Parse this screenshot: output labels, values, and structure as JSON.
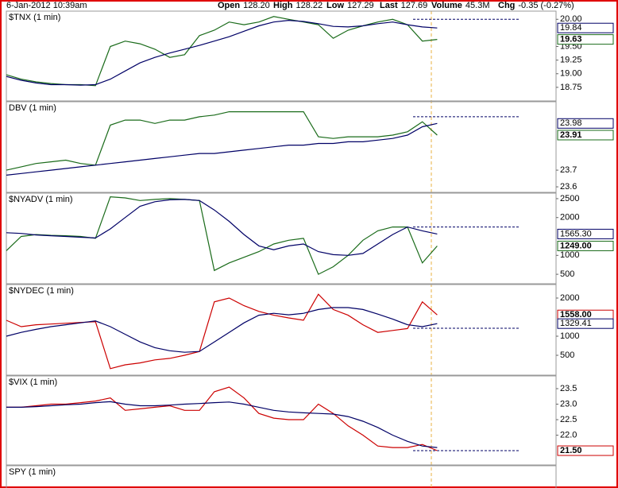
{
  "header": {
    "date": "6-Jan-2012 10:39am",
    "items": [
      {
        "label": "Open",
        "value": "128.20"
      },
      {
        "label": "High",
        "value": "128.22"
      },
      {
        "label": "Low",
        "value": "127.29"
      },
      {
        "label": "Last",
        "value": "127.69"
      },
      {
        "label": "Volume",
        "value": "45.3M"
      },
      {
        "label": "Chg",
        "value": "-0.35 (-0.27%)"
      }
    ]
  },
  "chart_data": [
    {
      "type": "line",
      "title": "$TNX (1 min)",
      "xlim": [
        0,
        37
      ],
      "ylim": [
        18.5,
        20.15
      ],
      "yticks": [
        {
          "value": 20,
          "label": "20.00"
        },
        {
          "value": 19.5,
          "label": "19.50"
        },
        {
          "value": 19.25,
          "label": "19.25"
        },
        {
          "value": 19,
          "label": "19.00"
        },
        {
          "value": 18.75,
          "label": "18.75"
        }
      ],
      "reference": 20.0,
      "series": [
        {
          "color": "#1a6b1a",
          "show_last_label": true,
          "values": [
            18.98,
            18.9,
            18.85,
            18.82,
            18.8,
            18.8,
            18.78,
            19.5,
            19.6,
            19.55,
            19.45,
            19.3,
            19.35,
            19.7,
            19.8,
            19.95,
            19.9,
            19.95,
            20.05,
            20.0,
            19.95,
            19.9,
            19.65,
            19.8,
            19.88,
            19.95,
            20.0,
            19.9,
            19.6,
            19.63
          ]
        },
        {
          "color": "#000066",
          "show_last_label": true,
          "values": [
            18.95,
            18.88,
            18.83,
            18.8,
            18.8,
            18.79,
            18.8,
            18.9,
            19.05,
            19.2,
            19.3,
            19.38,
            19.45,
            19.52,
            19.6,
            19.68,
            19.78,
            19.88,
            19.95,
            19.98,
            19.96,
            19.92,
            19.87,
            19.86,
            19.88,
            19.92,
            19.95,
            19.9,
            19.86,
            19.84
          ]
        }
      ]
    },
    {
      "type": "line",
      "title": "DBV (1 min)",
      "xlim": [
        0,
        37
      ],
      "ylim": [
        23.567,
        24.11
      ],
      "yticks": [
        23.7,
        23.6
      ],
      "reference": 24.02,
      "series": [
        {
          "color": "#1a6b1a",
          "show_last_label": true,
          "values": [
            23.7,
            23.72,
            23.74,
            23.75,
            23.76,
            23.74,
            23.73,
            23.97,
            24.0,
            24.0,
            23.98,
            24.0,
            24.0,
            24.02,
            24.03,
            24.05,
            24.05,
            24.05,
            24.05,
            24.05,
            24.05,
            23.9,
            23.89,
            23.9,
            23.9,
            23.9,
            23.91,
            23.93,
            23.99,
            23.91
          ]
        },
        {
          "color": "#000066",
          "show_last_label": true,
          "values": [
            23.67,
            23.68,
            23.69,
            23.7,
            23.71,
            23.72,
            23.73,
            23.74,
            23.75,
            23.76,
            23.77,
            23.78,
            23.79,
            23.8,
            23.8,
            23.81,
            23.82,
            23.83,
            23.84,
            23.85,
            23.85,
            23.86,
            23.86,
            23.87,
            23.87,
            23.88,
            23.89,
            23.91,
            23.96,
            23.98
          ]
        }
      ]
    },
    {
      "type": "line",
      "title": "$NYADV (1 min)",
      "xlim": [
        0,
        37
      ],
      "ylim": [
        250,
        2646
      ],
      "yticks": [
        2500,
        2000,
        1000,
        500
      ],
      "reference": 1750,
      "series": [
        {
          "color": "#1a6b1a",
          "show_last_label": true,
          "values": [
            1125,
            1500,
            1550,
            1530,
            1520,
            1500,
            1450,
            2550,
            2520,
            2450,
            2480,
            2500,
            2480,
            2450,
            600,
            800,
            950,
            1100,
            1300,
            1400,
            1450,
            500,
            700,
            1000,
            1400,
            1650,
            1750,
            1750,
            800,
            1249
          ],
          "value_labels": [
            null,
            null,
            null,
            null,
            null,
            null,
            null,
            null,
            null,
            null,
            null,
            null,
            null,
            null,
            null,
            null,
            null,
            null,
            null,
            null,
            null,
            null,
            null,
            null,
            null,
            null,
            null,
            null,
            null,
            "1249.00"
          ]
        },
        {
          "color": "#000066",
          "show_last_label": true,
          "values": [
            1600,
            1580,
            1540,
            1520,
            1500,
            1480,
            1460,
            1700,
            2000,
            2300,
            2420,
            2470,
            2480,
            2450,
            2200,
            1900,
            1550,
            1250,
            1150,
            1250,
            1300,
            1100,
            1020,
            1000,
            1050,
            1300,
            1550,
            1750,
            1650,
            1565.3
          ],
          "value_labels": [
            null,
            null,
            null,
            null,
            null,
            null,
            null,
            null,
            null,
            null,
            null,
            null,
            null,
            null,
            null,
            null,
            null,
            null,
            null,
            null,
            null,
            null,
            null,
            null,
            null,
            null,
            null,
            null,
            null,
            "1565.30"
          ]
        }
      ]
    },
    {
      "type": "line",
      "title": "$NYDEC (1 min)",
      "xlim": [
        0,
        37
      ],
      "ylim": [
        -20,
        2354
      ],
      "yticks": [
        2000,
        1000,
        500
      ],
      "reference": 1208,
      "series": [
        {
          "color": "#cc0000",
          "show_last_label": true,
          "values": [
            1417,
            1250,
            1300,
            1320,
            1340,
            1360,
            1380,
            150,
            250,
            300,
            380,
            420,
            500,
            600,
            1900,
            2000,
            1800,
            1650,
            1550,
            1480,
            1420,
            2100,
            1700,
            1550,
            1300,
            1100,
            1150,
            1200,
            1900,
            1558
          ],
          "value_labels": [
            null,
            null,
            null,
            null,
            null,
            null,
            null,
            null,
            null,
            null,
            null,
            null,
            null,
            null,
            null,
            null,
            null,
            null,
            null,
            null,
            null,
            null,
            null,
            null,
            null,
            null,
            null,
            null,
            null,
            "1558.00"
          ]
        },
        {
          "color": "#000066",
          "show_last_label": true,
          "values": [
            1000,
            1100,
            1180,
            1250,
            1300,
            1350,
            1400,
            1250,
            1050,
            850,
            700,
            620,
            580,
            600,
            850,
            1100,
            1350,
            1550,
            1600,
            1560,
            1600,
            1700,
            1750,
            1750,
            1700,
            1580,
            1450,
            1300,
            1250,
            1329.41
          ]
        }
      ]
    },
    {
      "type": "line",
      "title": "$VIX (1 min)",
      "xlim": [
        0,
        37
      ],
      "ylim": [
        21.04,
        23.91
      ],
      "yticks": [
        23.5,
        {
          "value": 23,
          "label": "23.0"
        },
        22.5,
        {
          "value": 22,
          "label": "22.0"
        }
      ],
      "reference": 21.5,
      "series": [
        {
          "color": "#cc0000",
          "show_last_label": true,
          "values": [
            22.9,
            22.9,
            22.95,
            23.0,
            23.0,
            23.05,
            23.1,
            23.2,
            22.8,
            22.85,
            22.9,
            22.95,
            22.8,
            22.8,
            23.4,
            23.55,
            23.2,
            22.7,
            22.55,
            22.5,
            22.5,
            23.0,
            22.7,
            22.3,
            22.0,
            21.65,
            21.6,
            21.6,
            21.7,
            21.5
          ],
          "value_labels": [
            null,
            null,
            null,
            null,
            null,
            null,
            null,
            null,
            null,
            null,
            null,
            null,
            null,
            null,
            null,
            null,
            null,
            null,
            null,
            null,
            null,
            null,
            null,
            null,
            null,
            null,
            null,
            null,
            null,
            "21.50"
          ]
        },
        {
          "color": "#000066",
          "values": [
            22.9,
            22.9,
            22.92,
            22.95,
            22.98,
            23.0,
            23.05,
            23.08,
            23.0,
            22.95,
            22.95,
            22.97,
            23.0,
            23.02,
            23.05,
            23.07,
            23.0,
            22.9,
            22.8,
            22.75,
            22.72,
            22.7,
            22.68,
            22.6,
            22.45,
            22.25,
            22.0,
            21.8,
            21.65,
            21.6
          ]
        }
      ]
    },
    {
      "type": "panel",
      "title": "SPY (1 min)"
    }
  ]
}
